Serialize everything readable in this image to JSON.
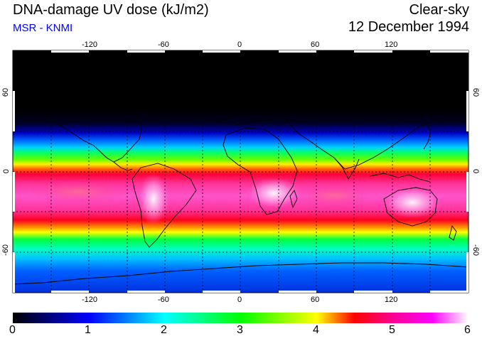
{
  "header": {
    "title": "DNA-damage UV dose (kJ/m2)",
    "subtitle": "MSR - KNMI",
    "sky_condition": "Clear-sky",
    "date": "12 December 1994"
  },
  "map": {
    "longitude_ticks": [
      "-120",
      "-60",
      "0",
      "60",
      "120"
    ],
    "longitude_values": [
      -120,
      -60,
      0,
      60,
      120
    ],
    "latitude_ticks_left": [
      "60",
      "0",
      "-60"
    ],
    "latitude_ticks_right": [
      "60",
      "0",
      "-60"
    ],
    "latitude_values": [
      60,
      0,
      -60
    ],
    "lon_range": [
      -180,
      180
    ],
    "lat_range": [
      -90,
      90
    ]
  },
  "colorbar": {
    "labels": [
      "0",
      "1",
      "2",
      "3",
      "4",
      "5",
      "6"
    ],
    "range": [
      0,
      6
    ],
    "colors": [
      "#000000",
      "#0000ff",
      "#00ffff",
      "#00ff00",
      "#ffff00",
      "#ff0000",
      "#ff00ff",
      "#ffffff"
    ]
  }
}
